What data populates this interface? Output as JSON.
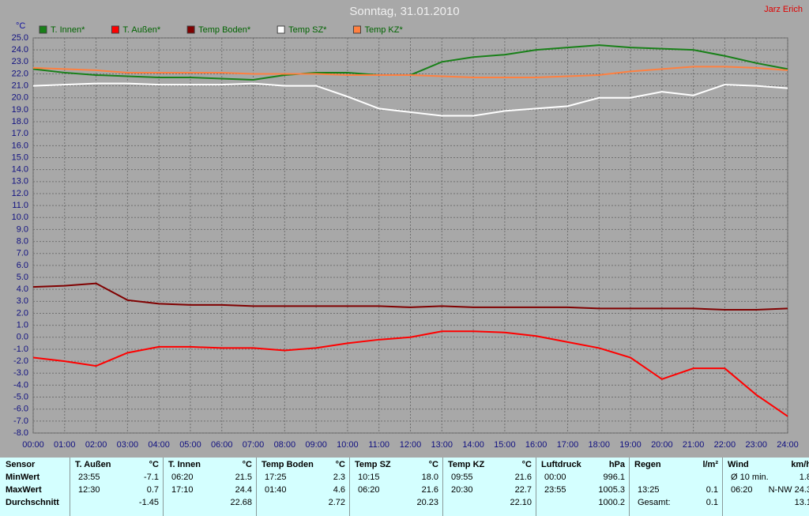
{
  "chart_data": {
    "type": "line",
    "title": "Sonntag, 31.01.2010",
    "annotation": "Jarz Erich",
    "y_label": "°C",
    "x": [
      0,
      1,
      2,
      3,
      4,
      5,
      6,
      7,
      8,
      9,
      10,
      11,
      12,
      13,
      14,
      15,
      16,
      17,
      18,
      19,
      20,
      21,
      22,
      23,
      24
    ],
    "series": [
      {
        "name": "T. Innen*",
        "color": "#188018",
        "values": [
          22.4,
          22.1,
          21.9,
          21.8,
          21.7,
          21.7,
          21.6,
          21.5,
          21.9,
          22.1,
          22.1,
          21.9,
          21.9,
          23.0,
          23.4,
          23.6,
          24.0,
          24.2,
          24.4,
          24.2,
          24.1,
          24.0,
          23.5,
          22.9,
          22.4
        ]
      },
      {
        "name": "T. Außen*",
        "color": "#ff0000",
        "values": [
          -1.7,
          -2.0,
          -2.4,
          -1.3,
          -0.8,
          -0.8,
          -0.9,
          -0.9,
          -1.1,
          -0.9,
          -0.5,
          -0.2,
          0.0,
          0.5,
          0.5,
          0.4,
          0.1,
          -0.4,
          -0.9,
          -1.7,
          -3.5,
          -2.6,
          -2.6,
          -4.8,
          -6.6
        ]
      },
      {
        "name": "Temp Boden*",
        "color": "#800000",
        "values": [
          4.2,
          4.3,
          4.5,
          3.1,
          2.8,
          2.7,
          2.7,
          2.6,
          2.6,
          2.6,
          2.6,
          2.6,
          2.5,
          2.6,
          2.5,
          2.5,
          2.5,
          2.5,
          2.4,
          2.4,
          2.4,
          2.4,
          2.3,
          2.3,
          2.4
        ]
      },
      {
        "name": "Temp SZ*",
        "color": "#ffffff",
        "values": [
          21.0,
          21.1,
          21.2,
          21.2,
          21.1,
          21.1,
          21.1,
          21.2,
          21.0,
          21.0,
          20.1,
          19.1,
          18.8,
          18.5,
          18.5,
          18.9,
          19.1,
          19.3,
          20.0,
          20.0,
          20.5,
          20.2,
          21.1,
          21.0,
          20.8
        ]
      },
      {
        "name": "Temp KZ*",
        "color": "#ff8040",
        "values": [
          22.5,
          22.4,
          22.3,
          22.1,
          22.1,
          22.1,
          22.1,
          22.0,
          22.0,
          22.0,
          21.9,
          21.9,
          21.9,
          21.8,
          21.7,
          21.7,
          21.7,
          21.8,
          21.9,
          22.2,
          22.4,
          22.6,
          22.6,
          22.5,
          22.3
        ]
      }
    ],
    "xlim": [
      0,
      24
    ],
    "xticks": [
      {
        "value": 0,
        "label": "00:00"
      },
      {
        "value": 1,
        "label": "01:00"
      },
      {
        "value": 2,
        "label": "02:00"
      },
      {
        "value": 3,
        "label": "03:00"
      },
      {
        "value": 4,
        "label": "04:00"
      },
      {
        "value": 5,
        "label": "05:00"
      },
      {
        "value": 6,
        "label": "06:00"
      },
      {
        "value": 7,
        "label": "07:00"
      },
      {
        "value": 8,
        "label": "08:00"
      },
      {
        "value": 9,
        "label": "09:00"
      },
      {
        "value": 10,
        "label": "10:00"
      },
      {
        "value": 11,
        "label": "11:00"
      },
      {
        "value": 12,
        "label": "12:00"
      },
      {
        "value": 13,
        "label": "13:00"
      },
      {
        "value": 14,
        "label": "14:00"
      },
      {
        "value": 15,
        "label": "15:00"
      },
      {
        "value": 16,
        "label": "16:00"
      },
      {
        "value": 17,
        "label": "17:00"
      },
      {
        "value": 18,
        "label": "18:00"
      },
      {
        "value": 19,
        "label": "19:00"
      },
      {
        "value": 20,
        "label": "20:00"
      },
      {
        "value": 21,
        "label": "21:00"
      },
      {
        "value": 22,
        "label": "22:00"
      },
      {
        "value": 23,
        "label": "23:00"
      },
      {
        "value": 24,
        "label": "24:00"
      }
    ],
    "ylim": [
      -8,
      25
    ],
    "yticks": [
      {
        "value": 25,
        "label": "25.0"
      },
      {
        "value": 24,
        "label": "24.0"
      },
      {
        "value": 23,
        "label": "23.0"
      },
      {
        "value": 22,
        "label": "22.0"
      },
      {
        "value": 21,
        "label": "21.0"
      },
      {
        "value": 20,
        "label": "20.0"
      },
      {
        "value": 19,
        "label": "19.0"
      },
      {
        "value": 18,
        "label": "18.0"
      },
      {
        "value": 17,
        "label": "17.0"
      },
      {
        "value": 16,
        "label": "16.0"
      },
      {
        "value": 15,
        "label": "15.0"
      },
      {
        "value": 14,
        "label": "14.0"
      },
      {
        "value": 13,
        "label": "13.0"
      },
      {
        "value": 12,
        "label": "12.0"
      },
      {
        "value": 11,
        "label": "11.0"
      },
      {
        "value": 10,
        "label": "10.0"
      },
      {
        "value": 9,
        "label": "9.0"
      },
      {
        "value": 8,
        "label": "8.0"
      },
      {
        "value": 7,
        "label": "7.0"
      },
      {
        "value": 6,
        "label": "6.0"
      },
      {
        "value": 5,
        "label": "5.0"
      },
      {
        "value": 4,
        "label": "4.0"
      },
      {
        "value": 3,
        "label": "3.0"
      },
      {
        "value": 2,
        "label": "2.0"
      },
      {
        "value": 1,
        "label": "1.0"
      },
      {
        "value": 0,
        "label": "0.0"
      },
      {
        "value": -1,
        "label": "-1.0"
      },
      {
        "value": -2,
        "label": "-2.0"
      },
      {
        "value": -3,
        "label": "-3.0"
      },
      {
        "value": -4,
        "label": "-4.0"
      },
      {
        "value": -5,
        "label": "-5.0"
      },
      {
        "value": -6,
        "label": "-6.0"
      },
      {
        "value": -7,
        "label": "-7.0"
      },
      {
        "value": -8,
        "label": "-8.0"
      }
    ],
    "grid": true
  },
  "table": {
    "row_labels": [
      "Sensor",
      "MinWert",
      "MaxWert",
      "Durchschnitt"
    ],
    "columns": [
      {
        "header": "T. Außen",
        "unit": "°C",
        "rows": [
          [
            "23:55",
            "-7.1"
          ],
          [
            "12:30",
            "0.7"
          ],
          [
            null,
            "-1.45"
          ]
        ]
      },
      {
        "header": "T. Innen",
        "unit": "°C",
        "rows": [
          [
            "06:20",
            "21.5"
          ],
          [
            "17:10",
            "24.4"
          ],
          [
            null,
            "22.68"
          ]
        ]
      },
      {
        "header": "Temp Boden",
        "unit": "°C",
        "rows": [
          [
            "17:25",
            "2.3"
          ],
          [
            "01:40",
            "4.6"
          ],
          [
            null,
            "2.72"
          ]
        ]
      },
      {
        "header": "Temp SZ",
        "unit": "°C",
        "rows": [
          [
            "10:15",
            "18.0"
          ],
          [
            "06:20",
            "21.6"
          ],
          [
            null,
            "20.23"
          ]
        ]
      },
      {
        "header": "Temp KZ",
        "unit": "°C",
        "rows": [
          [
            "09:55",
            "21.6"
          ],
          [
            "20:30",
            "22.7"
          ],
          [
            null,
            "22.10"
          ]
        ]
      },
      {
        "header": "Luftdruck",
        "unit": "hPa",
        "rows": [
          [
            "00:00",
            "996.1"
          ],
          [
            "23:55",
            "1005.3"
          ],
          [
            null,
            "1000.2"
          ]
        ]
      },
      {
        "header": "Regen",
        "unit": "l/m²",
        "rows": [
          [
            null,
            null
          ],
          [
            "13:25",
            "0.1"
          ],
          [
            "Gesamt:",
            "0.1"
          ]
        ]
      },
      {
        "header": "Wind",
        "unit": "km/h",
        "rows": [
          [
            "Ø 10 min.",
            "1.8"
          ],
          [
            "06:20",
            "N-NW 24.3"
          ],
          [
            null,
            "13.1"
          ]
        ]
      }
    ]
  }
}
